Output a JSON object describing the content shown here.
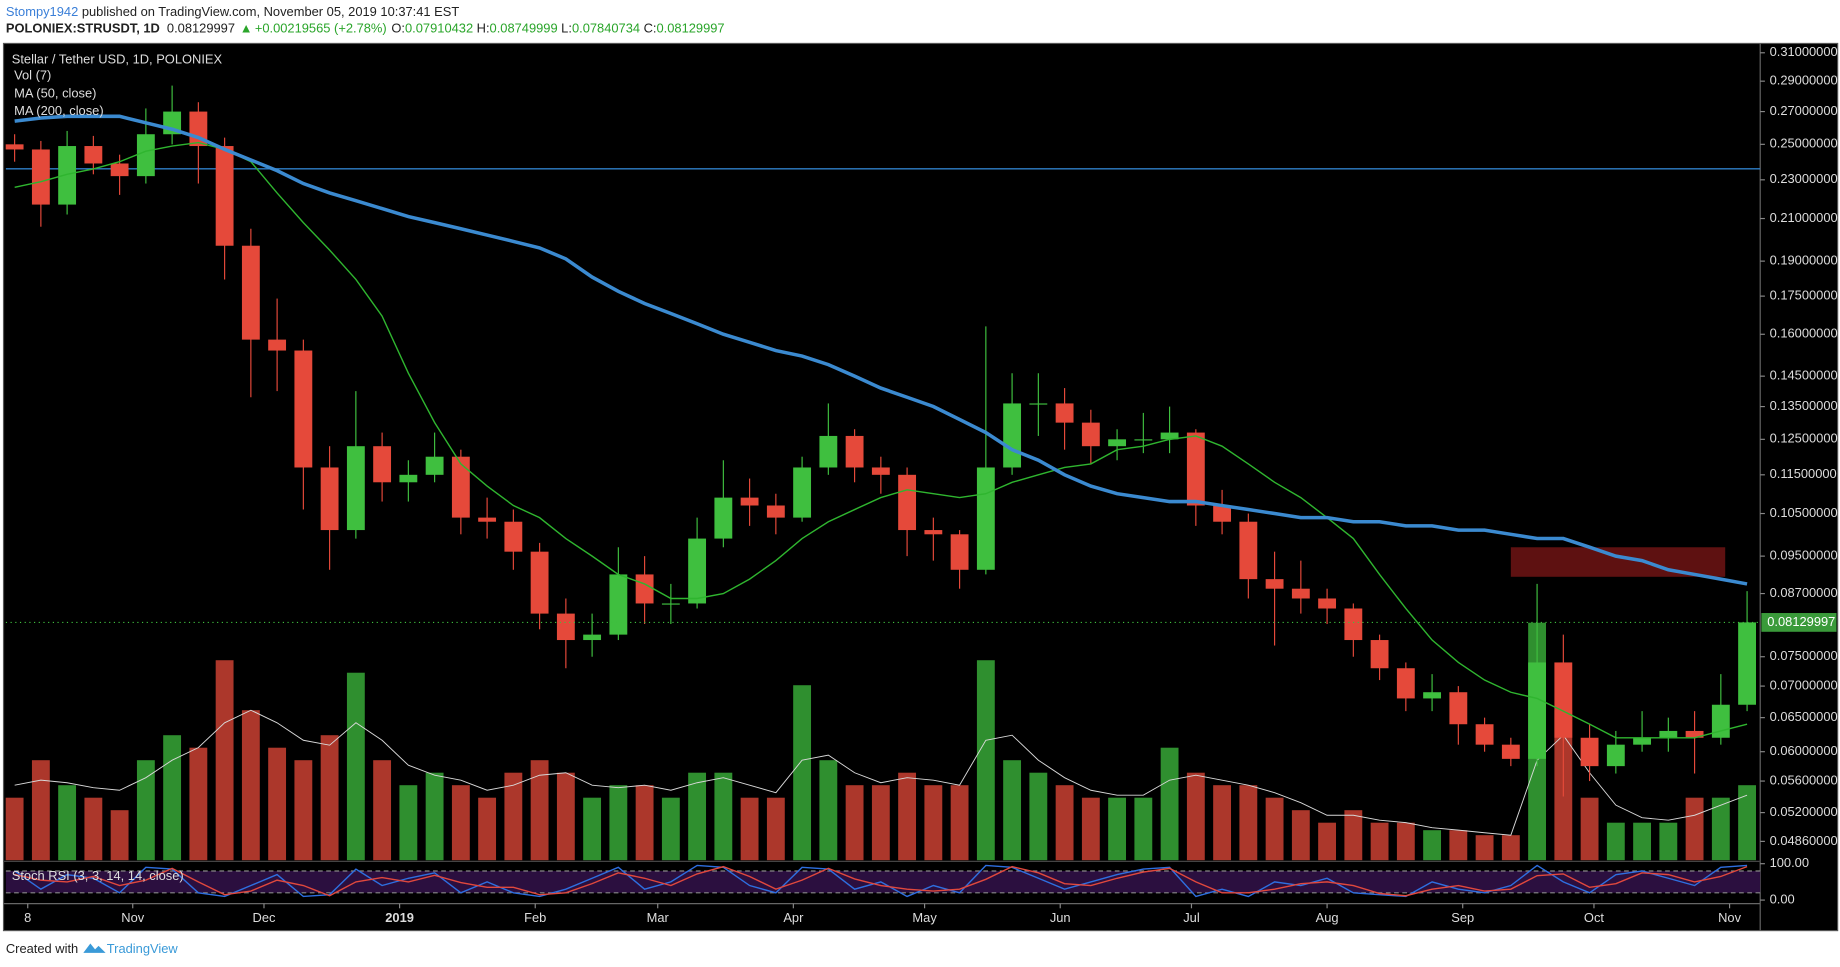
{
  "header": {
    "author": "Stompy1942",
    "published": "published on TradingView.com, November 05, 2019 10:37:41 EST",
    "symbol": "POLONIEX:STRUSDT, 1D",
    "last": "0.08129997",
    "arrow": "▲",
    "change": "+0.00219565 (+2.78%)",
    "o_label": "O:",
    "o": "0.07910432",
    "h_label": "H:",
    "h": "0.08749999",
    "l_label": "L:",
    "l": "0.07840734",
    "c_label": "C:",
    "c": "0.08129997"
  },
  "chart_data": {
    "type": "candlestick",
    "title": "Stellar / Tether USD, 1D, POLONIEX",
    "log_scale": true,
    "up_color": "#3fbf3f",
    "down_color": "#e5493a",
    "x": [
      -3,
      3,
      9,
      15,
      21,
      27,
      33,
      39,
      45,
      51,
      57,
      63,
      69,
      75,
      81,
      87,
      93,
      99,
      105,
      111,
      117,
      123,
      129,
      135,
      141,
      147,
      153,
      159,
      165,
      171,
      177,
      183,
      189,
      195,
      201,
      207,
      213,
      219,
      225,
      231,
      237,
      243,
      249,
      255,
      261,
      267,
      273,
      279,
      285,
      291,
      297,
      303,
      309,
      315,
      321,
      327,
      333,
      339,
      345,
      351,
      357,
      363,
      369,
      375,
      381,
      387,
      393
    ],
    "open": [
      0.25,
      0.247,
      0.217,
      0.249,
      0.239,
      0.232,
      0.256,
      0.27,
      0.249,
      0.197,
      0.158,
      0.154,
      0.117,
      0.101,
      0.123,
      0.113,
      0.115,
      0.12,
      0.104,
      0.103,
      0.096,
      0.083,
      0.078,
      0.079,
      0.091,
      0.085,
      0.085,
      0.099,
      0.109,
      0.107,
      0.104,
      0.117,
      0.126,
      0.117,
      0.115,
      0.101,
      0.1,
      0.092,
      0.117,
      0.136,
      0.136,
      0.13,
      0.123,
      0.125,
      0.125,
      0.127,
      0.107,
      0.103,
      0.09,
      0.088,
      0.086,
      0.084,
      0.078,
      0.073,
      0.068,
      0.069,
      0.064,
      0.061,
      0.059,
      0.074,
      0.062,
      0.058,
      0.061,
      0.062,
      0.063,
      0.062,
      0.067
    ],
    "high": [
      0.256,
      0.252,
      0.258,
      0.255,
      0.244,
      0.272,
      0.287,
      0.276,
      0.254,
      0.205,
      0.174,
      0.158,
      0.123,
      0.14,
      0.127,
      0.119,
      0.127,
      0.122,
      0.109,
      0.106,
      0.098,
      0.086,
      0.083,
      0.097,
      0.095,
      0.089,
      0.104,
      0.119,
      0.114,
      0.11,
      0.12,
      0.136,
      0.128,
      0.12,
      0.117,
      0.104,
      0.101,
      0.163,
      0.146,
      0.146,
      0.141,
      0.134,
      0.128,
      0.133,
      0.135,
      0.128,
      0.111,
      0.105,
      0.096,
      0.094,
      0.088,
      0.085,
      0.079,
      0.074,
      0.072,
      0.07,
      0.065,
      0.062,
      0.089,
      0.079,
      0.064,
      0.063,
      0.066,
      0.065,
      0.066,
      0.072,
      0.0875
    ],
    "low": [
      0.24,
      0.206,
      0.212,
      0.233,
      0.222,
      0.228,
      0.25,
      0.228,
      0.182,
      0.138,
      0.14,
      0.106,
      0.092,
      0.099,
      0.108,
      0.108,
      0.113,
      0.1,
      0.099,
      0.092,
      0.08,
      0.073,
      0.075,
      0.078,
      0.081,
      0.081,
      0.084,
      0.097,
      0.102,
      0.1,
      0.103,
      0.115,
      0.113,
      0.11,
      0.095,
      0.094,
      0.088,
      0.091,
      0.115,
      0.126,
      0.122,
      0.118,
      0.119,
      0.121,
      0.121,
      0.102,
      0.1,
      0.086,
      0.077,
      0.083,
      0.081,
      0.075,
      0.071,
      0.066,
      0.066,
      0.061,
      0.06,
      0.058,
      0.058,
      0.054,
      0.056,
      0.057,
      0.06,
      0.06,
      0.057,
      0.061,
      0.066
    ],
    "close": [
      0.247,
      0.217,
      0.249,
      0.239,
      0.232,
      0.256,
      0.27,
      0.249,
      0.197,
      0.158,
      0.154,
      0.117,
      0.101,
      0.123,
      0.113,
      0.115,
      0.12,
      0.104,
      0.103,
      0.096,
      0.083,
      0.078,
      0.079,
      0.091,
      0.085,
      0.085,
      0.099,
      0.109,
      0.107,
      0.104,
      0.117,
      0.126,
      0.117,
      0.115,
      0.101,
      0.1,
      0.092,
      0.117,
      0.136,
      0.136,
      0.13,
      0.123,
      0.125,
      0.125,
      0.127,
      0.107,
      0.103,
      0.09,
      0.088,
      0.086,
      0.084,
      0.078,
      0.073,
      0.068,
      0.069,
      0.064,
      0.061,
      0.059,
      0.074,
      0.062,
      0.058,
      0.061,
      0.062,
      0.063,
      0.062,
      0.067,
      0.0813
    ],
    "xlim": [
      -5,
      396
    ],
    "xticks": [
      {
        "value": 0,
        "label": "8"
      },
      {
        "value": 24,
        "label": "Nov"
      },
      {
        "value": 54,
        "label": "Dec"
      },
      {
        "value": 85,
        "label": "2019"
      },
      {
        "value": 116,
        "label": "Feb"
      },
      {
        "value": 144,
        "label": "Mar"
      },
      {
        "value": 175,
        "label": "Apr"
      },
      {
        "value": 205,
        "label": "May"
      },
      {
        "value": 236,
        "label": "Jun"
      },
      {
        "value": 266,
        "label": "Jul"
      },
      {
        "value": 297,
        "label": "Aug"
      },
      {
        "value": 328,
        "label": "Sep"
      },
      {
        "value": 358,
        "label": "Oct"
      },
      {
        "value": 389,
        "label": "Nov"
      }
    ],
    "ylim": [
      0.0465,
      0.316
    ],
    "yticks": [
      {
        "value": 0.31,
        "label": "0.31000000"
      },
      {
        "value": 0.29,
        "label": "0.29000000"
      },
      {
        "value": 0.27,
        "label": "0.27000000"
      },
      {
        "value": 0.25,
        "label": "0.25000000"
      },
      {
        "value": 0.23,
        "label": "0.23000000"
      },
      {
        "value": 0.21,
        "label": "0.21000000"
      },
      {
        "value": 0.19,
        "label": "0.19000000"
      },
      {
        "value": 0.175,
        "label": "0.17500000"
      },
      {
        "value": 0.16,
        "label": "0.16000000"
      },
      {
        "value": 0.145,
        "label": "0.14500000"
      },
      {
        "value": 0.135,
        "label": "0.13500000"
      },
      {
        "value": 0.125,
        "label": "0.12500000"
      },
      {
        "value": 0.115,
        "label": "0.11500000"
      },
      {
        "value": 0.105,
        "label": "0.10500000"
      },
      {
        "value": 0.095,
        "label": "0.09500000"
      },
      {
        "value": 0.087,
        "label": "0.08700000"
      },
      {
        "value": 0.075,
        "label": "0.07500000"
      },
      {
        "value": 0.07,
        "label": "0.07000000"
      },
      {
        "value": 0.065,
        "label": "0.06500000"
      },
      {
        "value": 0.06,
        "label": "0.06000000"
      },
      {
        "value": 0.056,
        "label": "0.05600000"
      },
      {
        "value": 0.052,
        "label": "0.05200000"
      },
      {
        "value": 0.0486,
        "label": "0.04860000"
      }
    ],
    "volume": {
      "name": "Vol (7)",
      "ylim": [
        0,
        100
      ],
      "ma_color": "#d8d8d8",
      "values": [
        25,
        40,
        30,
        25,
        20,
        40,
        50,
        45,
        80,
        60,
        45,
        40,
        50,
        75,
        40,
        30,
        35,
        30,
        25,
        35,
        40,
        35,
        25,
        30,
        30,
        25,
        35,
        35,
        25,
        25,
        70,
        40,
        30,
        30,
        35,
        30,
        30,
        80,
        40,
        35,
        30,
        25,
        25,
        25,
        45,
        35,
        30,
        30,
        25,
        20,
        15,
        20,
        15,
        15,
        12,
        12,
        10,
        10,
        95,
        60,
        25,
        15,
        15,
        15,
        25,
        25,
        30
      ],
      "ma": [
        30,
        32,
        31,
        29,
        28,
        33,
        40,
        45,
        55,
        60,
        55,
        48,
        46,
        55,
        48,
        38,
        34,
        32,
        28,
        30,
        34,
        35,
        30,
        29,
        30,
        28,
        31,
        33,
        30,
        27,
        40,
        42,
        35,
        31,
        33,
        32,
        30,
        48,
        50,
        40,
        33,
        28,
        26,
        26,
        32,
        34,
        32,
        30,
        27,
        23,
        18,
        18,
        16,
        15,
        13,
        12,
        11,
        10,
        40,
        50,
        35,
        22,
        17,
        16,
        18,
        22,
        26
      ]
    },
    "series": [
      {
        "name": "MA (50, close)",
        "color": "#2fb52f",
        "values": [
          0.226,
          0.229,
          0.233,
          0.236,
          0.24,
          0.246,
          0.249,
          0.251,
          0.247,
          0.24,
          0.223,
          0.208,
          0.195,
          0.182,
          0.167,
          0.146,
          0.13,
          0.118,
          0.112,
          0.107,
          0.104,
          0.099,
          0.095,
          0.091,
          0.089,
          0.086,
          0.086,
          0.087,
          0.09,
          0.094,
          0.099,
          0.103,
          0.106,
          0.109,
          0.111,
          0.11,
          0.109,
          0.11,
          0.113,
          0.115,
          0.117,
          0.118,
          0.122,
          0.123,
          0.125,
          0.126,
          0.123,
          0.118,
          0.113,
          0.109,
          0.104,
          0.099,
          0.091,
          0.084,
          0.078,
          0.074,
          0.071,
          0.069,
          0.068,
          0.066,
          0.064,
          0.062,
          0.062,
          0.062,
          0.062,
          0.063,
          0.064
        ]
      },
      {
        "name": "MA (200, close)",
        "color": "#3b8ad0",
        "values": [
          0.264,
          0.266,
          0.267,
          0.267,
          0.267,
          0.263,
          0.259,
          0.254,
          0.247,
          0.241,
          0.235,
          0.228,
          0.223,
          0.219,
          0.215,
          0.211,
          0.208,
          0.205,
          0.202,
          0.199,
          0.196,
          0.191,
          0.183,
          0.177,
          0.172,
          0.168,
          0.164,
          0.16,
          0.157,
          0.154,
          0.152,
          0.149,
          0.145,
          0.141,
          0.138,
          0.135,
          0.131,
          0.127,
          0.122,
          0.119,
          0.115,
          0.112,
          0.11,
          0.109,
          0.108,
          0.108,
          0.107,
          0.106,
          0.105,
          0.104,
          0.104,
          0.103,
          0.103,
          0.102,
          0.102,
          0.101,
          0.101,
          0.1,
          0.099,
          0.099,
          0.097,
          0.095,
          0.094,
          0.092,
          0.091,
          0.09,
          0.089
        ]
      }
    ],
    "hline": {
      "value": 0.236,
      "color": "#2f7fc8"
    },
    "zone": {
      "y": [
        0.0905,
        0.097
      ],
      "x": [
        339,
        388
      ],
      "color": "#6e1414"
    },
    "price_line": 0.08129997,
    "stoch": {
      "name": "Stoch RSI (3, 3, 14, 14, close)",
      "ylim": [
        0,
        100
      ],
      "yticks": [
        {
          "value": 100,
          "label": "100.00"
        },
        {
          "value": 0,
          "label": "0.00"
        }
      ],
      "bands": [
        20,
        80
      ],
      "k": {
        "color": "#2e6fe0",
        "values": [
          80,
          30,
          70,
          60,
          20,
          90,
          85,
          20,
          10,
          40,
          70,
          10,
          15,
          85,
          40,
          60,
          75,
          20,
          50,
          20,
          10,
          30,
          60,
          90,
          30,
          50,
          95,
          90,
          40,
          20,
          90,
          85,
          30,
          50,
          10,
          40,
          20,
          95,
          90,
          60,
          30,
          50,
          70,
          85,
          90,
          10,
          30,
          10,
          50,
          40,
          60,
          20,
          15,
          10,
          50,
          30,
          20,
          40,
          95,
          50,
          20,
          70,
          80,
          60,
          40,
          90,
          95
        ]
      },
      "d": {
        "color": "#e0483d",
        "values": [
          70,
          55,
          50,
          65,
          40,
          55,
          87,
          50,
          15,
          25,
          55,
          40,
          12,
          50,
          62,
          50,
          68,
          48,
          35,
          35,
          15,
          20,
          45,
          75,
          60,
          40,
          72,
          92,
          65,
          30,
          55,
          87,
          58,
          40,
          30,
          25,
          30,
          57,
          92,
          75,
          45,
          40,
          60,
          77,
          87,
          50,
          20,
          20,
          30,
          45,
          50,
          40,
          18,
          12,
          30,
          40,
          25,
          30,
          67,
          72,
          35,
          45,
          75,
          70,
          50,
          65,
          92
        ]
      }
    }
  },
  "footer": {
    "text": "Created with",
    "brand": "TradingView"
  }
}
